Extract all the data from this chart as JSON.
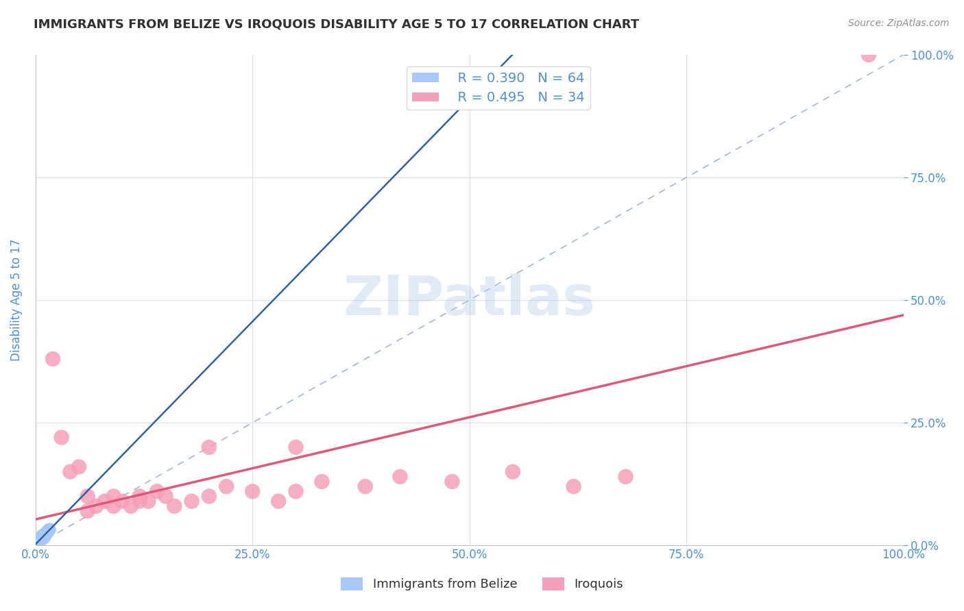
{
  "title": "IMMIGRANTS FROM BELIZE VS IROQUOIS DISABILITY AGE 5 TO 17 CORRELATION CHART",
  "source": "Source: ZipAtlas.com",
  "ylabel": "Disability Age 5 to 17",
  "watermark": "ZIPatlas",
  "legend_label1": "Immigrants from Belize",
  "legend_label2": "Iroquois",
  "R1": 0.39,
  "N1": 64,
  "R2": 0.495,
  "N2": 34,
  "xlim": [
    0,
    1.0
  ],
  "ylim": [
    0,
    1.0
  ],
  "xticks": [
    0.0,
    0.25,
    0.5,
    0.75,
    1.0
  ],
  "yticks": [
    0.0,
    0.25,
    0.5,
    0.75,
    1.0
  ],
  "xticklabels": [
    "0.0%",
    "25.0%",
    "50.0%",
    "75.0%",
    "100.0%"
  ],
  "yticklabels": [
    "0.0%",
    "25.0%",
    "50.0%",
    "75.0%",
    "100.0%"
  ],
  "color_belize": "#a8c8f8",
  "color_iroquois": "#f4a0b8",
  "color_line_iroquois": "#e05878",
  "color_diag": "#a0b8d8",
  "title_color": "#303030",
  "axis_label_color": "#5090d0",
  "tick_label_color": "#5090d0",
  "background_color": "#ffffff",
  "grid_color": "#d8e0ec",
  "belize_x": [
    0.005,
    0.008,
    0.01,
    0.012,
    0.015,
    0.003,
    0.006,
    0.009,
    0.011,
    0.014,
    0.004,
    0.007,
    0.01,
    0.013,
    0.016,
    0.002,
    0.005,
    0.008,
    0.011,
    0.014,
    0.003,
    0.006,
    0.009,
    0.012,
    0.015,
    0.004,
    0.007,
    0.01,
    0.002,
    0.005,
    0.008,
    0.011,
    0.013,
    0.016,
    0.003,
    0.006,
    0.009,
    0.012,
    0.004,
    0.007,
    0.01,
    0.002,
    0.005,
    0.008,
    0.011,
    0.014,
    0.003,
    0.006,
    0.009,
    0.012,
    0.004,
    0.007,
    0.01,
    0.002,
    0.005,
    0.008,
    0.011,
    0.013,
    0.003,
    0.006,
    0.009,
    0.012,
    0.004,
    0.007
  ],
  "belize_y": [
    0.01,
    0.02,
    0.015,
    0.025,
    0.03,
    0.008,
    0.012,
    0.018,
    0.022,
    0.028,
    0.01,
    0.016,
    0.02,
    0.026,
    0.032,
    0.006,
    0.012,
    0.016,
    0.022,
    0.028,
    0.008,
    0.014,
    0.018,
    0.024,
    0.03,
    0.01,
    0.014,
    0.02,
    0.006,
    0.01,
    0.016,
    0.022,
    0.026,
    0.032,
    0.008,
    0.012,
    0.018,
    0.024,
    0.01,
    0.016,
    0.02,
    0.006,
    0.012,
    0.016,
    0.022,
    0.028,
    0.008,
    0.014,
    0.018,
    0.024,
    0.01,
    0.016,
    0.02,
    0.006,
    0.01,
    0.016,
    0.022,
    0.026,
    0.008,
    0.012,
    0.018,
    0.024,
    0.01,
    0.014
  ],
  "iroquois_x": [
    0.02,
    0.04,
    0.05,
    0.06,
    0.07,
    0.08,
    0.09,
    0.1,
    0.11,
    0.12,
    0.13,
    0.14,
    0.15,
    0.16,
    0.18,
    0.2,
    0.22,
    0.25,
    0.28,
    0.3,
    0.33,
    0.38,
    0.42,
    0.48,
    0.55,
    0.62,
    0.68,
    0.03,
    0.06,
    0.09,
    0.12,
    0.2,
    0.3,
    0.96
  ],
  "iroquois_y": [
    0.38,
    0.15,
    0.16,
    0.07,
    0.08,
    0.09,
    0.1,
    0.09,
    0.08,
    0.1,
    0.09,
    0.11,
    0.1,
    0.08,
    0.09,
    0.1,
    0.12,
    0.11,
    0.09,
    0.11,
    0.13,
    0.12,
    0.14,
    0.13,
    0.15,
    0.12,
    0.14,
    0.22,
    0.1,
    0.08,
    0.09,
    0.2,
    0.2,
    1.0
  ]
}
